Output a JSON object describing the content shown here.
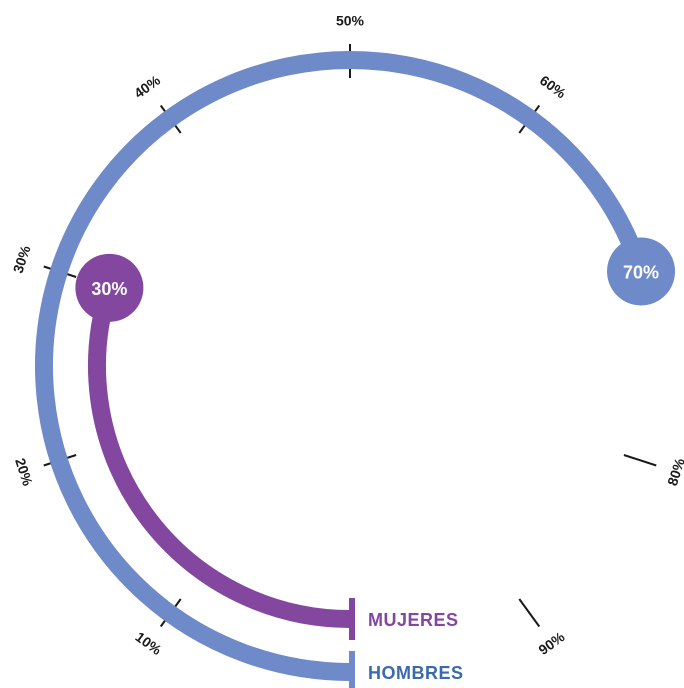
{
  "chart_data": {
    "type": "radial-bar",
    "scale": {
      "min": 0,
      "max": 100,
      "unit": "%",
      "ticks": [
        {
          "value": 10,
          "label": "10%"
        },
        {
          "value": 20,
          "label": "20%"
        },
        {
          "value": 30,
          "label": "30%"
        },
        {
          "value": 40,
          "label": "40%"
        },
        {
          "value": 50,
          "label": "50%"
        },
        {
          "value": 60,
          "label": "60%"
        },
        {
          "value": 80,
          "label": "80%"
        },
        {
          "value": 90,
          "label": "90%"
        }
      ]
    },
    "series": [
      {
        "name": "HOMBRES",
        "value": 70,
        "label": "70%",
        "color": "#6f8ac8",
        "label_color": "#3a69b0"
      },
      {
        "name": "MUJERES",
        "value": 30,
        "label": "30%",
        "color": "#8447a0",
        "label_color": "#8447a0"
      }
    ],
    "grid": false,
    "legend": "bottom-center"
  }
}
